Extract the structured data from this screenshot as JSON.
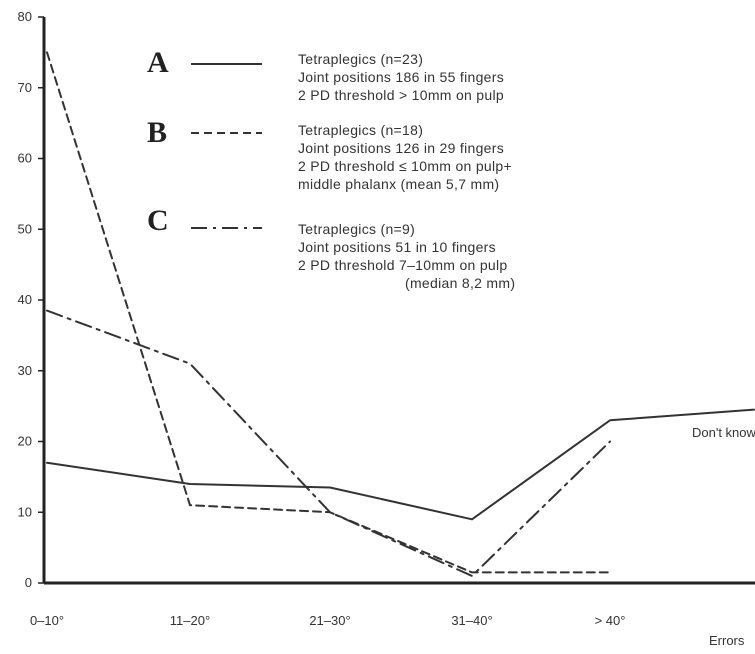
{
  "chart_data": {
    "type": "line",
    "categories": [
      "0–10°",
      "11–20°",
      "21–30°",
      "31–40°",
      "> 40°"
    ],
    "xlabel": "Errors",
    "ylim": [
      0,
      80
    ],
    "yticks": [
      0,
      10,
      20,
      30,
      40,
      50,
      60,
      70,
      80
    ],
    "grid": false,
    "series": [
      {
        "letter": "A",
        "style": "solid",
        "color": "#333333",
        "legend_lines": [
          "Tetraplegics (n=23)",
          "Joint positions 186 in 55 fingers",
          "2 PD threshold  > 10mm on pulp"
        ],
        "values": [
          17,
          14,
          13.5,
          9,
          23
        ],
        "extension": {
          "label": "Errors",
          "value": 24.5
        }
      },
      {
        "letter": "B",
        "style": "dashed",
        "color": "#333333",
        "legend_lines": [
          "Tetraplegics (n=18)",
          "Joint positions 126 in 29 fingers",
          "2 PD threshold  ≤ 10mm on pulp+",
          "middle phalanx (mean 5,7 mm)"
        ],
        "values": [
          75,
          11,
          10,
          1.5,
          1.5
        ]
      },
      {
        "letter": "C",
        "style": "dashdot",
        "color": "#333333",
        "legend_lines": [
          "Tetraplegics (n=9)",
          "Joint positions 51 in 10 fingers",
          "2 PD threshold  7–10mm on pulp",
          "(median 8,2 mm)"
        ],
        "values": [
          38.5,
          31,
          10,
          1,
          20
        ]
      }
    ],
    "annotations": [
      {
        "text": "Don't know"
      }
    ]
  }
}
